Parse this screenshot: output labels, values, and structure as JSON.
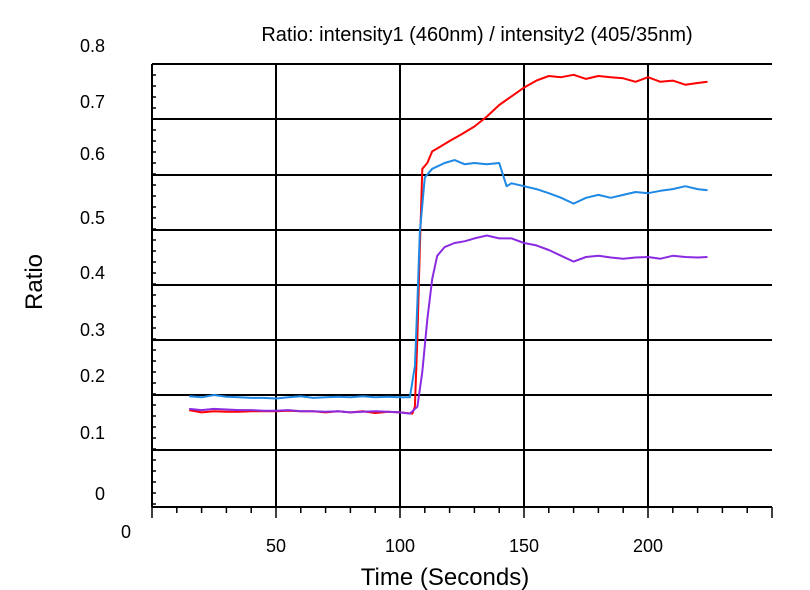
{
  "chart_data": {
    "type": "line",
    "title": "Ratio: intensity1 (460nm) / intensity2 (405/35nm)",
    "xlabel": "Time (Seconds)",
    "ylabel": "Ratio",
    "xlim": [
      0,
      250
    ],
    "ylim": [
      0,
      0.8
    ],
    "x_ticks": [
      "0",
      "50",
      "100",
      "150",
      "200"
    ],
    "y_ticks": [
      "0",
      "0.1",
      "0.2",
      "0.3",
      "0.4",
      "0.5",
      "0.6",
      "0.7",
      "0.8"
    ],
    "grid": true,
    "legend": false,
    "series": [
      {
        "color": "#ff0000",
        "points": [
          [
            15,
            0.174
          ],
          [
            20,
            0.17
          ],
          [
            25,
            0.172
          ],
          [
            30,
            0.171
          ],
          [
            35,
            0.171
          ],
          [
            40,
            0.172
          ],
          [
            45,
            0.172
          ],
          [
            50,
            0.172
          ],
          [
            55,
            0.173
          ],
          [
            60,
            0.172
          ],
          [
            65,
            0.172
          ],
          [
            70,
            0.17
          ],
          [
            75,
            0.172
          ],
          [
            80,
            0.17
          ],
          [
            85,
            0.172
          ],
          [
            90,
            0.169
          ],
          [
            95,
            0.171
          ],
          [
            100,
            0.17
          ],
          [
            105,
            0.168
          ],
          [
            106,
            0.18
          ],
          [
            107,
            0.3
          ],
          [
            108,
            0.45
          ],
          [
            109,
            0.59
          ],
          [
            111,
            0.6
          ],
          [
            113,
            0.62
          ],
          [
            115,
            0.625
          ],
          [
            120,
            0.638
          ],
          [
            125,
            0.65
          ],
          [
            130,
            0.663
          ],
          [
            135,
            0.68
          ],
          [
            140,
            0.7
          ],
          [
            145,
            0.715
          ],
          [
            150,
            0.73
          ],
          [
            155,
            0.742
          ],
          [
            160,
            0.75
          ],
          [
            165,
            0.748
          ],
          [
            170,
            0.752
          ],
          [
            175,
            0.745
          ],
          [
            180,
            0.75
          ],
          [
            185,
            0.748
          ],
          [
            190,
            0.746
          ],
          [
            195,
            0.74
          ],
          [
            200,
            0.748
          ],
          [
            205,
            0.74
          ],
          [
            210,
            0.742
          ],
          [
            215,
            0.735
          ],
          [
            220,
            0.738
          ],
          [
            224,
            0.74
          ]
        ]
      },
      {
        "color": "#1e88e5",
        "points": [
          [
            15,
            0.198
          ],
          [
            20,
            0.196
          ],
          [
            25,
            0.2
          ],
          [
            30,
            0.197
          ],
          [
            35,
            0.196
          ],
          [
            40,
            0.195
          ],
          [
            45,
            0.195
          ],
          [
            50,
            0.194
          ],
          [
            55,
            0.196
          ],
          [
            60,
            0.198
          ],
          [
            65,
            0.195
          ],
          [
            70,
            0.196
          ],
          [
            75,
            0.197
          ],
          [
            80,
            0.196
          ],
          [
            85,
            0.198
          ],
          [
            90,
            0.196
          ],
          [
            95,
            0.197
          ],
          [
            100,
            0.196
          ],
          [
            104,
            0.196
          ],
          [
            106,
            0.25
          ],
          [
            107,
            0.36
          ],
          [
            108,
            0.48
          ],
          [
            110,
            0.575
          ],
          [
            113,
            0.59
          ],
          [
            118,
            0.6
          ],
          [
            122,
            0.605
          ],
          [
            126,
            0.598
          ],
          [
            130,
            0.6
          ],
          [
            135,
            0.598
          ],
          [
            140,
            0.6
          ],
          [
            143,
            0.56
          ],
          [
            145,
            0.565
          ],
          [
            150,
            0.56
          ],
          [
            155,
            0.555
          ],
          [
            160,
            0.548
          ],
          [
            165,
            0.54
          ],
          [
            170,
            0.53
          ],
          [
            175,
            0.54
          ],
          [
            180,
            0.545
          ],
          [
            185,
            0.54
          ],
          [
            190,
            0.545
          ],
          [
            195,
            0.55
          ],
          [
            200,
            0.548
          ],
          [
            205,
            0.552
          ],
          [
            210,
            0.555
          ],
          [
            215,
            0.56
          ],
          [
            220,
            0.555
          ],
          [
            224,
            0.553
          ]
        ]
      },
      {
        "color": "#8a2be2",
        "points": [
          [
            15,
            0.176
          ],
          [
            20,
            0.174
          ],
          [
            25,
            0.176
          ],
          [
            30,
            0.175
          ],
          [
            35,
            0.174
          ],
          [
            40,
            0.174
          ],
          [
            45,
            0.173
          ],
          [
            50,
            0.173
          ],
          [
            55,
            0.174
          ],
          [
            60,
            0.172
          ],
          [
            65,
            0.172
          ],
          [
            70,
            0.171
          ],
          [
            75,
            0.172
          ],
          [
            80,
            0.17
          ],
          [
            85,
            0.171
          ],
          [
            90,
            0.172
          ],
          [
            95,
            0.171
          ],
          [
            100,
            0.17
          ],
          [
            104,
            0.168
          ],
          [
            107,
            0.18
          ],
          [
            109,
            0.24
          ],
          [
            111,
            0.33
          ],
          [
            113,
            0.4
          ],
          [
            115,
            0.44
          ],
          [
            118,
            0.455
          ],
          [
            122,
            0.462
          ],
          [
            126,
            0.465
          ],
          [
            130,
            0.47
          ],
          [
            135,
            0.475
          ],
          [
            140,
            0.47
          ],
          [
            145,
            0.47
          ],
          [
            150,
            0.462
          ],
          [
            155,
            0.458
          ],
          [
            160,
            0.45
          ],
          [
            165,
            0.44
          ],
          [
            170,
            0.43
          ],
          [
            175,
            0.438
          ],
          [
            180,
            0.44
          ],
          [
            185,
            0.437
          ],
          [
            190,
            0.435
          ],
          [
            195,
            0.437
          ],
          [
            200,
            0.438
          ],
          [
            205,
            0.435
          ],
          [
            210,
            0.44
          ],
          [
            215,
            0.438
          ],
          [
            220,
            0.437
          ],
          [
            224,
            0.438
          ]
        ]
      }
    ]
  }
}
